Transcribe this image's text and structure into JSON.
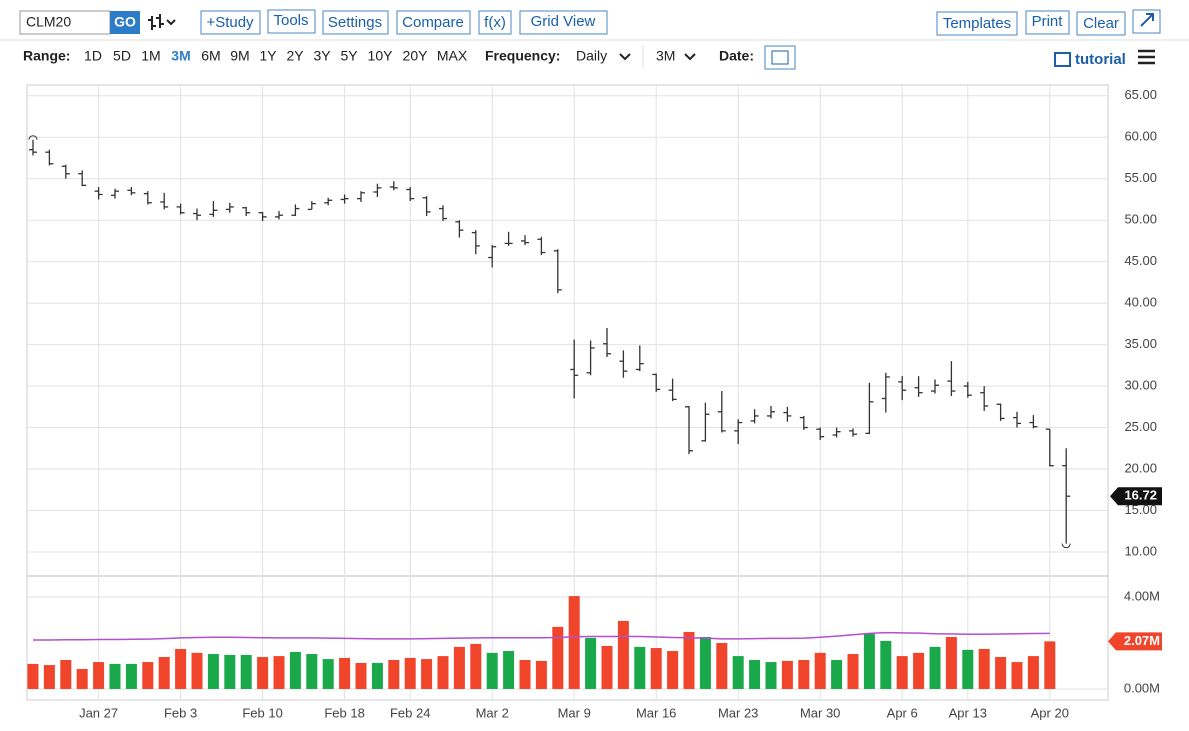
{
  "toolbar": {
    "symbol": "CLM20",
    "go": "GO",
    "study": "+Study",
    "tools": "Tools",
    "settings": "Settings",
    "compare": "Compare",
    "fx": "f(x)",
    "grid_view": "Grid View",
    "templates": "Templates",
    "print": "Print",
    "clear": "Clear"
  },
  "range_bar": {
    "range_label": "Range:",
    "ranges": [
      "1D",
      "5D",
      "1M",
      "3M",
      "6M",
      "9M",
      "1Y",
      "2Y",
      "3Y",
      "5Y",
      "10Y",
      "20Y",
      "MAX"
    ],
    "active_range": 3,
    "frequency_label": "Frequency:",
    "frequency": "Daily",
    "period": "3M",
    "date_label": "Date:",
    "tutorial": "tutorial"
  },
  "chart_data": {
    "type": "ohlc",
    "color": "#333333",
    "grid": true,
    "categories": [
      null,
      null,
      null,
      null,
      "Jan 27",
      null,
      null,
      null,
      null,
      "Feb 3",
      null,
      null,
      null,
      null,
      "Feb 10",
      null,
      null,
      null,
      null,
      "Feb 18",
      null,
      null,
      null,
      "Feb 24",
      null,
      null,
      null,
      null,
      "Mar 2",
      null,
      null,
      null,
      null,
      "Mar 9",
      null,
      null,
      null,
      null,
      "Mar 16",
      null,
      null,
      null,
      null,
      "Mar 23",
      null,
      null,
      null,
      null,
      "Mar 30",
      null,
      null,
      null,
      null,
      "Apr 6",
      null,
      null,
      null,
      "Apr 13",
      null,
      null,
      null,
      null,
      "Apr 20",
      null
    ],
    "open": [
      58.5,
      58.2,
      56.5,
      55.6,
      53.5,
      53.0,
      53.6,
      53.2,
      52.2,
      51.6,
      50.8,
      50.7,
      51.3,
      51.5,
      50.9,
      50.4,
      50.6,
      51.3,
      52.1,
      52.5,
      52.6,
      53.4,
      54.0,
      53.7,
      52.7,
      51.4,
      49.8,
      48.5,
      45.5,
      47.2,
      47.5,
      47.7,
      46.3,
      32.0,
      31.6,
      35.1,
      33.0,
      32.0,
      31.4,
      29.5,
      27.5,
      23.4,
      26.9,
      24.6,
      25.8,
      26.4,
      26.8,
      26.2,
      24.8,
      24.1,
      24.6,
      24.3,
      28.5,
      30.5,
      29.8,
      29.4,
      30.6,
      30.0,
      29.2,
      27.8,
      26.2,
      25.6,
      24.8,
      20.4
    ],
    "high": [
      59.7,
      58.5,
      56.7,
      56.0,
      54.0,
      53.8,
      54.0,
      53.5,
      53.3,
      52.0,
      51.4,
      52.3,
      52.1,
      51.6,
      51.0,
      51.1,
      51.9,
      52.3,
      52.7,
      53.1,
      53.5,
      54.4,
      54.7,
      54.0,
      52.9,
      51.8,
      50.0,
      48.8,
      47.0,
      48.6,
      48.2,
      48.0,
      46.5,
      35.6,
      35.5,
      37.0,
      34.3,
      34.9,
      31.5,
      30.9,
      27.6,
      28.0,
      29.4,
      26.0,
      27.2,
      27.6,
      27.5,
      26.4,
      25.0,
      25.0,
      24.9,
      30.4,
      31.6,
      31.2,
      31.2,
      30.8,
      33.0,
      30.5,
      30.0,
      27.9,
      26.9,
      26.5,
      24.8,
      22.5
    ],
    "low": [
      57.8,
      56.6,
      55.0,
      54.1,
      52.5,
      52.6,
      53.0,
      51.9,
      51.3,
      50.7,
      50.0,
      50.4,
      50.9,
      50.5,
      49.9,
      50.1,
      50.5,
      51.3,
      51.8,
      52.0,
      52.2,
      52.8,
      53.6,
      52.3,
      50.5,
      49.9,
      47.9,
      45.9,
      44.3,
      46.9,
      47.0,
      45.8,
      41.2,
      28.5,
      31.3,
      33.5,
      31.0,
      31.8,
      29.3,
      28.2,
      21.8,
      23.3,
      24.4,
      23.0,
      25.5,
      26.1,
      25.7,
      24.7,
      23.5,
      23.8,
      23.9,
      24.2,
      26.8,
      28.3,
      28.7,
      29.1,
      28.8,
      28.6,
      27.0,
      25.8,
      25.0,
      24.9,
      20.3,
      11.0
    ],
    "close": [
      58.2,
      56.8,
      55.6,
      54.2,
      53.1,
      53.5,
      53.3,
      52.1,
      51.6,
      50.9,
      50.6,
      51.2,
      51.6,
      50.9,
      50.4,
      50.6,
      51.4,
      52.0,
      52.4,
      52.6,
      53.3,
      53.9,
      53.9,
      52.6,
      51.0,
      50.2,
      48.8,
      46.9,
      46.8,
      47.2,
      47.3,
      46.1,
      41.6,
      31.3,
      34.6,
      33.9,
      31.8,
      32.7,
      29.6,
      28.4,
      22.2,
      26.6,
      24.6,
      25.6,
      26.4,
      26.9,
      26.4,
      25.0,
      23.9,
      24.5,
      24.2,
      28.1,
      31.1,
      29.5,
      29.2,
      30.1,
      29.4,
      28.9,
      27.6,
      26.1,
      25.5,
      25.1,
      20.4,
      16.72
    ],
    "ylim": [
      7.1,
      66.3
    ],
    "yticks": [
      {
        "value": 10,
        "label": "10.00"
      },
      {
        "value": 15,
        "label": "15.00"
      },
      {
        "value": 20,
        "label": "20.00"
      },
      {
        "value": 25,
        "label": "25.00"
      },
      {
        "value": 30,
        "label": "30.00"
      },
      {
        "value": 35,
        "label": "35.00"
      },
      {
        "value": 40,
        "label": "40.00"
      },
      {
        "value": 45,
        "label": "45.00"
      },
      {
        "value": 50,
        "label": "50.00"
      },
      {
        "value": 55,
        "label": "55.00"
      },
      {
        "value": 60,
        "label": "60.00"
      },
      {
        "value": 65,
        "label": "65.00"
      }
    ],
    "volume": {
      "values": [
        1.09,
        1.04,
        1.26,
        0.87,
        1.17,
        1.09,
        1.09,
        1.17,
        1.39,
        1.74,
        1.57,
        1.52,
        1.48,
        1.48,
        1.39,
        1.43,
        1.61,
        1.52,
        1.3,
        1.35,
        1.13,
        1.13,
        1.26,
        1.35,
        1.3,
        1.43,
        1.83,
        1.96,
        1.57,
        1.65,
        1.26,
        1.22,
        2.7,
        4.04,
        2.22,
        1.87,
        2.96,
        1.83,
        1.78,
        1.65,
        2.48,
        2.26,
        2.0,
        1.43,
        1.26,
        1.17,
        1.22,
        1.26,
        1.57,
        1.26,
        1.52,
        2.39,
        2.09,
        1.43,
        1.57,
        1.83,
        2.26,
        1.7,
        1.74,
        1.39,
        1.17,
        1.43,
        2.07,
        null
      ],
      "up_color": "#19a84a",
      "down_color": "#f0452b",
      "directions": [
        "d",
        "d",
        "d",
        "d",
        "d",
        "u",
        "u",
        "d",
        "d",
        "d",
        "d",
        "u",
        "u",
        "u",
        "d",
        "d",
        "u",
        "u",
        "u",
        "d",
        "d",
        "u",
        "d",
        "d",
        "d",
        "d",
        "d",
        "d",
        "u",
        "u",
        "d",
        "d",
        "d",
        "d",
        "u",
        "d",
        "d",
        "u",
        "d",
        "d",
        "d",
        "u",
        "d",
        "u",
        "u",
        "u",
        "d",
        "d",
        "d",
        "u",
        "d",
        "u",
        "u",
        "d",
        "d",
        "u",
        "d",
        "u",
        "d",
        "d",
        "d",
        "d",
        "d",
        null
      ],
      "ma_values": [
        2.13,
        2.13,
        2.14,
        2.14,
        2.15,
        2.15,
        2.16,
        2.17,
        2.19,
        2.22,
        2.24,
        2.25,
        2.25,
        2.24,
        2.23,
        2.22,
        2.22,
        2.22,
        2.21,
        2.2,
        2.19,
        2.18,
        2.18,
        2.18,
        2.19,
        2.2,
        2.21,
        2.22,
        2.23,
        2.23,
        2.23,
        2.23,
        2.24,
        2.27,
        2.28,
        2.28,
        2.29,
        2.28,
        2.26,
        2.24,
        2.23,
        2.21,
        2.18,
        2.18,
        2.19,
        2.2,
        2.2,
        2.21,
        2.25,
        2.3,
        2.36,
        2.42,
        2.45,
        2.44,
        2.43,
        2.4,
        2.39,
        2.38,
        2.38,
        2.39,
        2.4,
        2.41,
        2.42,
        null
      ],
      "ma_color": "#b34fd1",
      "ylim": [
        -0.48,
        4.87
      ],
      "yticks": [
        {
          "value": 0,
          "label": "0.00M"
        },
        {
          "value": 4,
          "label": "4.00M"
        }
      ],
      "last_label": "2.07M"
    }
  }
}
